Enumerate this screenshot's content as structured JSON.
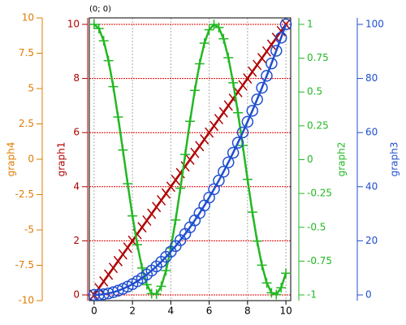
{
  "chart_data": {
    "type": "line",
    "annotation": "(0; 0)",
    "grid": true,
    "x": [
      0,
      0.25,
      0.5,
      0.75,
      1,
      1.25,
      1.5,
      1.75,
      2,
      2.25,
      2.5,
      2.75,
      3,
      3.25,
      3.5,
      3.75,
      4,
      4.25,
      4.5,
      4.75,
      5,
      5.25,
      5.5,
      5.75,
      6,
      6.25,
      6.5,
      6.75,
      7,
      7.25,
      7.5,
      7.75,
      8,
      8.25,
      8.5,
      8.75,
      9,
      9.25,
      9.5,
      9.75,
      10
    ],
    "xlim": [
      -0.25,
      10.25
    ],
    "xticks": [
      0,
      2,
      4,
      6,
      8,
      10
    ],
    "axes": [
      {
        "label": "graph4",
        "color": "#e07b00",
        "side": "left",
        "lim": [
          -10,
          10
        ],
        "ticks": [
          10,
          7.5,
          5,
          2.5,
          0,
          -2.5,
          -5,
          -7.5,
          -10
        ]
      },
      {
        "label": "graph1",
        "color": "#b00000",
        "side": "left",
        "lim": [
          -0.21,
          10.24
        ],
        "ticks": [
          0,
          2,
          4,
          6,
          8,
          10
        ]
      },
      {
        "label": "graph2",
        "color": "#22b822",
        "side": "right",
        "lim": [
          -1.042,
          1.048
        ],
        "ticks": [
          1,
          0.75,
          0.5,
          0.25,
          0,
          -0.25,
          -0.5,
          -0.75,
          -1
        ]
      },
      {
        "label": "graph3",
        "color": "#1f4fcf",
        "side": "right",
        "lim": [
          -2.1,
          102.4
        ],
        "ticks": [
          0,
          20,
          40,
          60,
          80,
          100
        ]
      }
    ],
    "series": [
      {
        "axis": 1,
        "color": "#b00000",
        "marker": "x",
        "values": [
          0,
          0.25,
          0.5,
          0.75,
          1,
          1.25,
          1.5,
          1.75,
          2,
          2.25,
          2.5,
          2.75,
          3,
          3.25,
          3.5,
          3.75,
          4,
          4.25,
          4.5,
          4.75,
          5,
          5.25,
          5.5,
          5.75,
          6,
          6.25,
          6.5,
          6.75,
          7,
          7.25,
          7.5,
          7.75,
          8,
          8.25,
          8.5,
          8.75,
          9,
          9.25,
          9.5,
          9.75,
          10
        ]
      },
      {
        "axis": 2,
        "color": "#22b822",
        "marker": "plus",
        "values": [
          1,
          0.969,
          0.878,
          0.732,
          0.54,
          0.315,
          0.071,
          -0.178,
          -0.416,
          -0.628,
          -0.801,
          -0.924,
          -0.99,
          -0.994,
          -0.936,
          -0.82,
          -0.654,
          -0.446,
          -0.211,
          0.038,
          0.284,
          0.512,
          0.709,
          0.861,
          0.96,
          0.999,
          0.977,
          0.893,
          0.754,
          0.568,
          0.347,
          0.105,
          -0.146,
          -0.388,
          -0.602,
          -0.78,
          -0.911,
          -0.984,
          -0.997,
          -0.947,
          -0.839
        ]
      },
      {
        "axis": 3,
        "color": "#1f4fcf",
        "marker": "circle",
        "values": [
          0,
          0.0625,
          0.25,
          0.5625,
          1,
          1.5625,
          2.25,
          3.0625,
          4,
          5.0625,
          6.25,
          7.5625,
          9,
          10.5625,
          12.25,
          14.0625,
          16,
          18.0625,
          20.25,
          22.5625,
          25,
          27.5625,
          30.25,
          33.0625,
          36,
          39.0625,
          42.25,
          45.5625,
          49,
          52.5625,
          56.25,
          60.0625,
          64,
          68.0625,
          72.25,
          76.5625,
          81,
          85.5625,
          90.25,
          95.0625,
          100
        ]
      }
    ]
  }
}
